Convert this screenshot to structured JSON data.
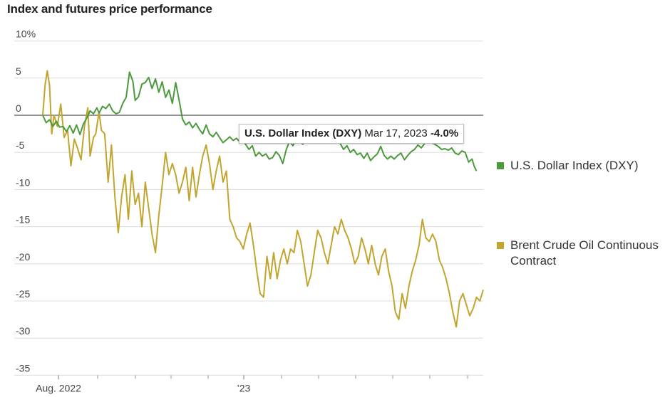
{
  "chart_data": {
    "type": "line",
    "title": "Index and futures price performance",
    "y_unit": "%",
    "ylim": [
      -35,
      10
    ],
    "y_ticks": [
      10,
      5,
      0,
      -5,
      -10,
      -15,
      -20,
      -25,
      -30,
      -35
    ],
    "y_tick_labels": [
      "10%",
      "5",
      "0",
      "-5",
      "-10",
      "-15",
      "-20",
      "-25",
      "-30",
      "-35"
    ],
    "x_tick_labels": [
      "Aug. 2022",
      "’23"
    ],
    "grid": true,
    "legend_position": "right",
    "series": [
      {
        "name": "U.S. Dollar Index (DXY)",
        "color": "#4c9a3b",
        "points": [
          [
            0,
            0
          ],
          [
            3,
            -1
          ],
          [
            6,
            -0.6
          ],
          [
            9,
            -1.5
          ],
          [
            12,
            -0.8
          ],
          [
            15,
            -1.6
          ],
          [
            18,
            -1.5
          ],
          [
            21,
            -2.2
          ],
          [
            24,
            -1.4
          ],
          [
            27,
            -2.4
          ],
          [
            30,
            -1.3
          ],
          [
            33,
            -2.6
          ],
          [
            36,
            -1.2
          ],
          [
            39,
            -0.4
          ],
          [
            42,
            0.6
          ],
          [
            45,
            0.2
          ],
          [
            48,
            1
          ],
          [
            50,
            0.3
          ],
          [
            53,
            1.2
          ],
          [
            56,
            0.9
          ],
          [
            59,
            1.5
          ],
          [
            62,
            0.6
          ],
          [
            65,
            0.2
          ],
          [
            68,
            0.4
          ],
          [
            71,
            1.6
          ],
          [
            74,
            2.4
          ],
          [
            77,
            5.8
          ],
          [
            80,
            4.6
          ],
          [
            82,
            2
          ],
          [
            85,
            2.5
          ],
          [
            88,
            4.2
          ],
          [
            91,
            4.4
          ],
          [
            94,
            5.1
          ],
          [
            97,
            3.6
          ],
          [
            100,
            4.9
          ],
          [
            103,
            3.1
          ],
          [
            106,
            4.5
          ],
          [
            109,
            2.4
          ],
          [
            112,
            3.4
          ],
          [
            115,
            1.6
          ],
          [
            118,
            4.4
          ],
          [
            121,
            2.1
          ],
          [
            124,
            -0.5
          ],
          [
            127,
            -1.3
          ],
          [
            130,
            -0.9
          ],
          [
            133,
            -1.7
          ],
          [
            136,
            -1.1
          ],
          [
            139,
            -1.9
          ],
          [
            142,
            -2.5
          ],
          [
            145,
            -1.3
          ],
          [
            148,
            -2.5
          ],
          [
            151,
            -2.9
          ],
          [
            154,
            -2.3
          ],
          [
            157,
            -3
          ],
          [
            160,
            -3.7
          ],
          [
            163,
            -3.3
          ],
          [
            166,
            -2.9
          ],
          [
            169,
            -3.4
          ],
          [
            172,
            -3.1
          ],
          [
            175,
            -3.6
          ],
          [
            178,
            -3.6
          ],
          [
            180,
            -3.9
          ],
          [
            183,
            -4.6
          ],
          [
            186,
            -4.1
          ],
          [
            189,
            -5.5
          ],
          [
            192,
            -5
          ],
          [
            195,
            -5.5
          ],
          [
            198,
            -5.2
          ],
          [
            201,
            -5.9
          ],
          [
            204,
            -5.7
          ],
          [
            207,
            -4.9
          ],
          [
            210,
            -5.4
          ],
          [
            213,
            -6.5
          ],
          [
            216,
            -4.7
          ],
          [
            219,
            -3.5
          ],
          [
            222,
            -4.1
          ],
          [
            225,
            -3.3
          ],
          [
            228,
            -3.6
          ],
          [
            231,
            -3.9
          ],
          [
            234,
            -3.1
          ],
          [
            237,
            -3.5
          ],
          [
            240,
            -3.2
          ],
          [
            243,
            -2.7
          ],
          [
            246,
            -3.2
          ],
          [
            249,
            -2.6
          ],
          [
            252,
            -2.9
          ],
          [
            255,
            -2.4
          ],
          [
            258,
            -3
          ],
          [
            261,
            -3.1
          ],
          [
            264,
            -3.8
          ],
          [
            267,
            -4.6
          ],
          [
            270,
            -4.1
          ],
          [
            273,
            -5
          ],
          [
            276,
            -4.6
          ],
          [
            279,
            -5.3
          ],
          [
            282,
            -5.1
          ],
          [
            285,
            -5.8
          ],
          [
            288,
            -5.1
          ],
          [
            291,
            -6.1
          ],
          [
            294,
            -5.6
          ],
          [
            297,
            -5.2
          ],
          [
            300,
            -4.2
          ],
          [
            303,
            -5.4
          ],
          [
            306,
            -5.9
          ],
          [
            309,
            -5.5
          ],
          [
            312,
            -5.9
          ],
          [
            315,
            -5.4
          ],
          [
            318,
            -5.1
          ],
          [
            321,
            -6
          ],
          [
            324,
            -5.4
          ],
          [
            327,
            -4.9
          ],
          [
            330,
            -4.6
          ],
          [
            333,
            -4
          ],
          [
            336,
            -4.4
          ],
          [
            339,
            -3.8
          ],
          [
            342,
            -3.4
          ],
          [
            345,
            -3.7
          ],
          [
            348,
            -3.9
          ],
          [
            351,
            -4.2
          ],
          [
            354,
            -4.6
          ],
          [
            357,
            -4.5
          ],
          [
            360,
            -4.7
          ],
          [
            363,
            -4.4
          ],
          [
            366,
            -5.1
          ],
          [
            369,
            -5.3
          ],
          [
            372,
            -4.8
          ],
          [
            375,
            -5
          ],
          [
            378,
            -6.3
          ],
          [
            381,
            -5.9
          ],
          [
            383,
            -6.9
          ],
          [
            385,
            -7.5
          ]
        ]
      },
      {
        "name": "Brent Crude Oil Continuous Contract",
        "color": "#c2a52e",
        "points": [
          [
            0,
            0
          ],
          [
            2,
            4
          ],
          [
            4,
            6
          ],
          [
            6,
            4
          ],
          [
            8,
            -2.5
          ],
          [
            10,
            0
          ],
          [
            13,
            -1.5
          ],
          [
            16,
            1.5
          ],
          [
            19,
            -3
          ],
          [
            22,
            -2
          ],
          [
            25,
            -6.8
          ],
          [
            28,
            -3.2
          ],
          [
            31,
            -4.5
          ],
          [
            34,
            -6
          ],
          [
            37,
            -1.5
          ],
          [
            40,
            1
          ],
          [
            42,
            -5.5
          ],
          [
            45,
            -3
          ],
          [
            47,
            -2.5
          ],
          [
            50,
            0.5
          ],
          [
            52,
            -2
          ],
          [
            55,
            -2.5
          ],
          [
            58,
            -9
          ],
          [
            61,
            -4
          ],
          [
            64,
            -11
          ],
          [
            67,
            -15.8
          ],
          [
            70,
            -11
          ],
          [
            73,
            -8
          ],
          [
            76,
            -14
          ],
          [
            79,
            -7.5
          ],
          [
            82,
            -12
          ],
          [
            85,
            -10.5
          ],
          [
            88,
            -15
          ],
          [
            91,
            -9
          ],
          [
            94,
            -12.5
          ],
          [
            97,
            -16
          ],
          [
            100,
            -18.5
          ],
          [
            103,
            -13.5
          ],
          [
            106,
            -9.5
          ],
          [
            109,
            -5
          ],
          [
            112,
            -8
          ],
          [
            115,
            -6.5
          ],
          [
            118,
            -8
          ],
          [
            121,
            -10.5
          ],
          [
            124,
            -9
          ],
          [
            127,
            -7
          ],
          [
            130,
            -11.5
          ],
          [
            133,
            -7
          ],
          [
            136,
            -11
          ],
          [
            139,
            -8
          ],
          [
            142,
            -5.5
          ],
          [
            145,
            -4
          ],
          [
            148,
            -6.5
          ],
          [
            151,
            -10
          ],
          [
            154,
            -7.5
          ],
          [
            157,
            -5.5
          ],
          [
            160,
            -9
          ],
          [
            163,
            -7.5
          ],
          [
            166,
            -14
          ],
          [
            169,
            -15
          ],
          [
            172,
            -16.5
          ],
          [
            175,
            -17
          ],
          [
            178,
            -18
          ],
          [
            181,
            -16
          ],
          [
            184,
            -14.5
          ],
          [
            187,
            -17.5
          ],
          [
            190,
            -21
          ],
          [
            193,
            -24
          ],
          [
            196,
            -24.5
          ],
          [
            199,
            -19
          ],
          [
            202,
            -22
          ],
          [
            205,
            -18.5
          ],
          [
            208,
            -22
          ],
          [
            211,
            -19.5
          ],
          [
            214,
            -18
          ],
          [
            217,
            -20
          ],
          [
            220,
            -18
          ],
          [
            223,
            -18.5
          ],
          [
            226,
            -15.5
          ],
          [
            229,
            -17
          ],
          [
            232,
            -20
          ],
          [
            235,
            -23
          ],
          [
            238,
            -21.5
          ],
          [
            241,
            -18.5
          ],
          [
            244,
            -15.5
          ],
          [
            247,
            -16.5
          ],
          [
            250,
            -18.5
          ],
          [
            253,
            -20
          ],
          [
            256,
            -17.5
          ],
          [
            259,
            -15
          ],
          [
            262,
            -16
          ],
          [
            265,
            -14
          ],
          [
            268,
            -15.5
          ],
          [
            271,
            -16.5
          ],
          [
            274,
            -18
          ],
          [
            277,
            -20
          ],
          [
            280,
            -19
          ],
          [
            283,
            -16.5
          ],
          [
            286,
            -18
          ],
          [
            289,
            -20
          ],
          [
            292,
            -17.5
          ],
          [
            295,
            -20
          ],
          [
            298,
            -21.5
          ],
          [
            301,
            -19
          ],
          [
            304,
            -18
          ],
          [
            307,
            -21
          ],
          [
            310,
            -23
          ],
          [
            313,
            -26.5
          ],
          [
            316,
            -27.5
          ],
          [
            319,
            -24
          ],
          [
            322,
            -26
          ],
          [
            325,
            -23
          ],
          [
            328,
            -21
          ],
          [
            331,
            -19.5
          ],
          [
            334,
            -17.5
          ],
          [
            337,
            -14
          ],
          [
            340,
            -16.5
          ],
          [
            343,
            -17
          ],
          [
            346,
            -16
          ],
          [
            349,
            -17
          ],
          [
            352,
            -19.5
          ],
          [
            355,
            -20.5
          ],
          [
            358,
            -22
          ],
          [
            361,
            -24
          ],
          [
            364,
            -26.5
          ],
          [
            367,
            -28.5
          ],
          [
            370,
            -25
          ],
          [
            373,
            -24
          ],
          [
            376,
            -25.5
          ],
          [
            379,
            -27
          ],
          [
            382,
            -26
          ],
          [
            385,
            -24.5
          ],
          [
            388,
            -25
          ],
          [
            391,
            -23.5
          ]
        ]
      }
    ],
    "tooltip": {
      "series": "U.S. Dollar Index (DXY)",
      "date": "Mar 17, 2023",
      "value": "-4.0%"
    }
  }
}
